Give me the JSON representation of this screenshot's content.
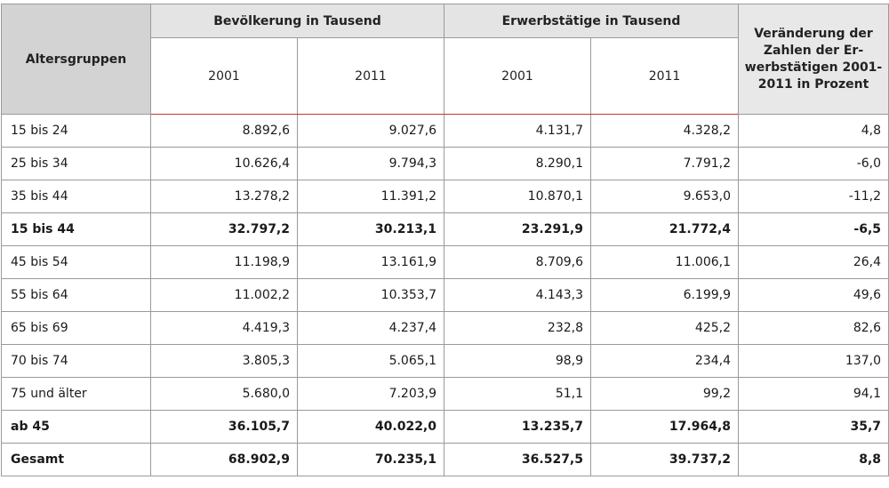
{
  "header": {
    "age_groups": "Altersgruppen",
    "population": "Bevölkerung in Tausend",
    "employed": "Erwerbstätige in Tausend",
    "change": "Veränderung der Zahlen der Er-werbstätigen 2001-2011 in Prozent",
    "change_lines": [
      "Veränderung der",
      "Zahlen der Er-",
      "werbstätigen 2001-",
      "2011 in Prozent"
    ],
    "years": [
      "2001",
      "2011",
      "2001",
      "2011"
    ]
  },
  "rows": [
    {
      "label": "15 bis 24",
      "pop2001": "8.892,6",
      "pop2011": "9.027,6",
      "emp2001": "4.131,7",
      "emp2011": "4.328,2",
      "change": "4,8",
      "bold": false
    },
    {
      "label": "25 bis 34",
      "pop2001": "10.626,4",
      "pop2011": "9.794,3",
      "emp2001": "8.290,1",
      "emp2011": "7.791,2",
      "change": "-6,0",
      "bold": false
    },
    {
      "label": "35 bis 44",
      "pop2001": "13.278,2",
      "pop2011": "11.391,2",
      "emp2001": "10.870,1",
      "emp2011": "9.653,0",
      "change": "-11,2",
      "bold": false
    },
    {
      "label": "15 bis 44",
      "pop2001": "32.797,2",
      "pop2011": "30.213,1",
      "emp2001": "23.291,9",
      "emp2011": "21.772,4",
      "change": "-6,5",
      "bold": true
    },
    {
      "label": "45 bis 54",
      "pop2001": "11.198,9",
      "pop2011": "13.161,9",
      "emp2001": "8.709,6",
      "emp2011": "11.006,1",
      "change": "26,4",
      "bold": false
    },
    {
      "label": "55 bis 64",
      "pop2001": "11.002,2",
      "pop2011": "10.353,7",
      "emp2001": "4.143,3",
      "emp2011": "6.199,9",
      "change": "49,6",
      "bold": false
    },
    {
      "label": "65 bis 69",
      "pop2001": "4.419,3",
      "pop2011": "4.237,4",
      "emp2001": "232,8",
      "emp2011": "425,2",
      "change": "82,6",
      "bold": false
    },
    {
      "label": "70 bis 74",
      "pop2001": "3.805,3",
      "pop2011": "5.065,1",
      "emp2001": "98,9",
      "emp2011": "234,4",
      "change": "137,0",
      "bold": false
    },
    {
      "label": "75 und älter",
      "pop2001": "5.680,0",
      "pop2011": "7.203,9",
      "emp2001": "51,1",
      "emp2011": "99,2",
      "change": "94,1",
      "bold": false
    },
    {
      "label": "ab 45",
      "pop2001": "36.105,7",
      "pop2011": "40.022,0",
      "emp2001": "13.235,7",
      "emp2011": "17.964,8",
      "change": "35,7",
      "bold": true
    },
    {
      "label": "Gesamt",
      "pop2001": "68.902,9",
      "pop2011": "70.235,1",
      "emp2001": "36.527,5",
      "emp2011": "39.737,2",
      "change": "8,8",
      "bold": true
    }
  ]
}
